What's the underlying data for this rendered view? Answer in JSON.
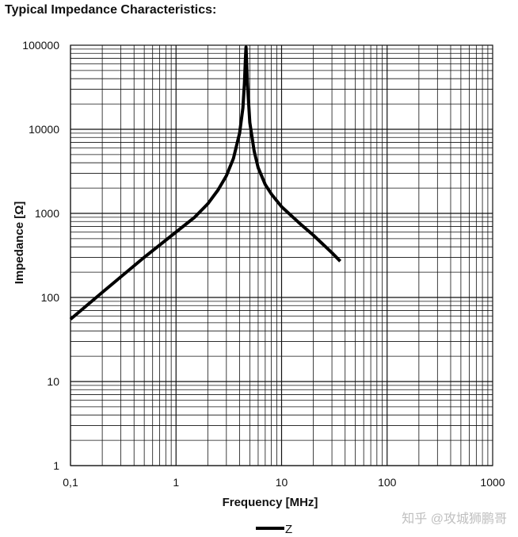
{
  "page": {
    "title": "Typical Impedance Characteristics:"
  },
  "watermark": "知乎 @攻城狮鹏哥",
  "chart_data": {
    "type": "line",
    "title": "Typical Impedance Characteristics:",
    "xlabel": "Frequency [MHz]",
    "ylabel": "Impedance [Ω]",
    "xscale": "log",
    "yscale": "log",
    "xlim": [
      0.1,
      1000
    ],
    "ylim": [
      1,
      100000
    ],
    "grid": true,
    "x_tick_labels": [
      {
        "value": 0.1,
        "label": "0,1"
      },
      {
        "value": 1,
        "label": "1"
      },
      {
        "value": 10,
        "label": "10"
      },
      {
        "value": 100,
        "label": "100"
      },
      {
        "value": 1000,
        "label": "1000"
      }
    ],
    "y_tick_labels": [
      {
        "value": 1,
        "label": "1"
      },
      {
        "value": 10,
        "label": "10"
      },
      {
        "value": 100,
        "label": "100"
      },
      {
        "value": 1000,
        "label": "1000"
      },
      {
        "value": 10000,
        "label": "10000"
      },
      {
        "value": 100000,
        "label": "100000"
      }
    ],
    "legend": {
      "position": "bottom-center",
      "entries": [
        "Z"
      ]
    },
    "series": [
      {
        "name": "Z",
        "color": "#000000",
        "points": [
          {
            "x": 0.1,
            "y": 55
          },
          {
            "x": 0.2,
            "y": 115
          },
          {
            "x": 0.5,
            "y": 300
          },
          {
            "x": 1,
            "y": 600
          },
          {
            "x": 1.5,
            "y": 900
          },
          {
            "x": 2,
            "y": 1300
          },
          {
            "x": 2.5,
            "y": 1900
          },
          {
            "x": 3,
            "y": 2800
          },
          {
            "x": 3.5,
            "y": 4500
          },
          {
            "x": 4,
            "y": 9000
          },
          {
            "x": 4.3,
            "y": 18000
          },
          {
            "x": 4.45,
            "y": 35000
          },
          {
            "x": 4.55,
            "y": 70000
          },
          {
            "x": 4.6,
            "y": 95000
          },
          {
            "x": 4.65,
            "y": 70000
          },
          {
            "x": 4.75,
            "y": 35000
          },
          {
            "x": 5,
            "y": 12000
          },
          {
            "x": 5.5,
            "y": 5500
          },
          {
            "x": 6,
            "y": 3500
          },
          {
            "x": 7,
            "y": 2200
          },
          {
            "x": 8,
            "y": 1700
          },
          {
            "x": 10,
            "y": 1200
          },
          {
            "x": 15,
            "y": 750
          },
          {
            "x": 20,
            "y": 550
          },
          {
            "x": 30,
            "y": 340
          },
          {
            "x": 36,
            "y": 270
          }
        ]
      }
    ]
  }
}
